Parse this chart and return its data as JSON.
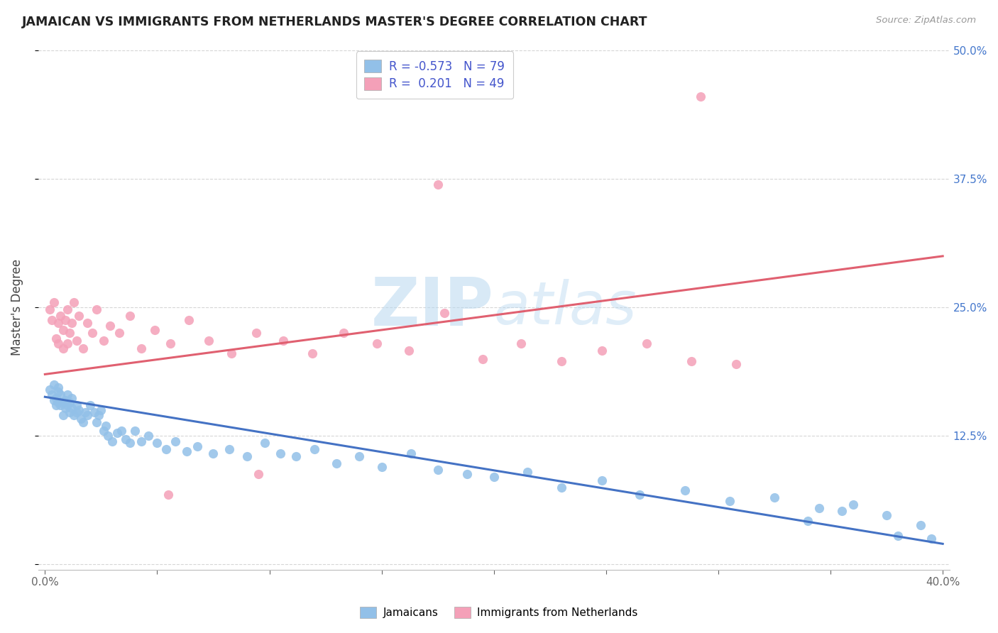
{
  "title": "JAMAICAN VS IMMIGRANTS FROM NETHERLANDS MASTER'S DEGREE CORRELATION CHART",
  "source": "Source: ZipAtlas.com",
  "ylabel": "Master's Degree",
  "R1": -0.573,
  "N1": 79,
  "R2": 0.201,
  "N2": 49,
  "color_blue": "#92C0E8",
  "color_pink": "#F4A0B8",
  "color_blue_line": "#4472C4",
  "color_pink_line": "#E06070",
  "xlim": [
    -0.003,
    0.403
  ],
  "ylim": [
    -0.005,
    0.505
  ],
  "blue_line_y0": 0.163,
  "blue_line_y1": 0.02,
  "pink_line_y0": 0.185,
  "pink_line_y1": 0.3,
  "blue_x": [
    0.002,
    0.003,
    0.004,
    0.004,
    0.005,
    0.005,
    0.006,
    0.006,
    0.006,
    0.007,
    0.007,
    0.008,
    0.008,
    0.009,
    0.009,
    0.01,
    0.01,
    0.011,
    0.011,
    0.012,
    0.012,
    0.013,
    0.014,
    0.014,
    0.015,
    0.016,
    0.017,
    0.018,
    0.019,
    0.02,
    0.022,
    0.023,
    0.024,
    0.025,
    0.026,
    0.027,
    0.028,
    0.03,
    0.032,
    0.034,
    0.036,
    0.038,
    0.04,
    0.043,
    0.046,
    0.05,
    0.054,
    0.058,
    0.063,
    0.068,
    0.075,
    0.082,
    0.09,
    0.098,
    0.105,
    0.112,
    0.12,
    0.13,
    0.14,
    0.15,
    0.163,
    0.175,
    0.188,
    0.2,
    0.215,
    0.23,
    0.248,
    0.265,
    0.285,
    0.305,
    0.325,
    0.345,
    0.36,
    0.375,
    0.39,
    0.355,
    0.34,
    0.38,
    0.395
  ],
  "blue_y": [
    0.17,
    0.165,
    0.175,
    0.16,
    0.155,
    0.162,
    0.158,
    0.168,
    0.172,
    0.155,
    0.165,
    0.158,
    0.145,
    0.16,
    0.152,
    0.165,
    0.155,
    0.148,
    0.158,
    0.152,
    0.162,
    0.145,
    0.155,
    0.148,
    0.15,
    0.142,
    0.138,
    0.148,
    0.145,
    0.155,
    0.148,
    0.138,
    0.145,
    0.15,
    0.13,
    0.135,
    0.125,
    0.12,
    0.128,
    0.13,
    0.122,
    0.118,
    0.13,
    0.12,
    0.125,
    0.118,
    0.112,
    0.12,
    0.11,
    0.115,
    0.108,
    0.112,
    0.105,
    0.118,
    0.108,
    0.105,
    0.112,
    0.098,
    0.105,
    0.095,
    0.108,
    0.092,
    0.088,
    0.085,
    0.09,
    0.075,
    0.082,
    0.068,
    0.072,
    0.062,
    0.065,
    0.055,
    0.058,
    0.048,
    0.038,
    0.052,
    0.042,
    0.028,
    0.025
  ],
  "pink_x": [
    0.002,
    0.003,
    0.004,
    0.005,
    0.006,
    0.006,
    0.007,
    0.008,
    0.008,
    0.009,
    0.01,
    0.01,
    0.011,
    0.012,
    0.013,
    0.014,
    0.015,
    0.017,
    0.019,
    0.021,
    0.023,
    0.026,
    0.029,
    0.033,
    0.038,
    0.043,
    0.049,
    0.056,
    0.064,
    0.073,
    0.083,
    0.094,
    0.106,
    0.119,
    0.133,
    0.148,
    0.162,
    0.178,
    0.195,
    0.212,
    0.23,
    0.248,
    0.268,
    0.288,
    0.308,
    0.292,
    0.175,
    0.095,
    0.055
  ],
  "pink_y": [
    0.248,
    0.238,
    0.255,
    0.22,
    0.235,
    0.215,
    0.242,
    0.228,
    0.21,
    0.238,
    0.215,
    0.248,
    0.225,
    0.235,
    0.255,
    0.218,
    0.242,
    0.21,
    0.235,
    0.225,
    0.248,
    0.218,
    0.232,
    0.225,
    0.242,
    0.21,
    0.228,
    0.215,
    0.238,
    0.218,
    0.205,
    0.225,
    0.218,
    0.205,
    0.225,
    0.215,
    0.208,
    0.245,
    0.2,
    0.215,
    0.198,
    0.208,
    0.215,
    0.198,
    0.195,
    0.455,
    0.37,
    0.088,
    0.068
  ],
  "legend_label1": "Jamaicans",
  "legend_label2": "Immigrants from Netherlands"
}
